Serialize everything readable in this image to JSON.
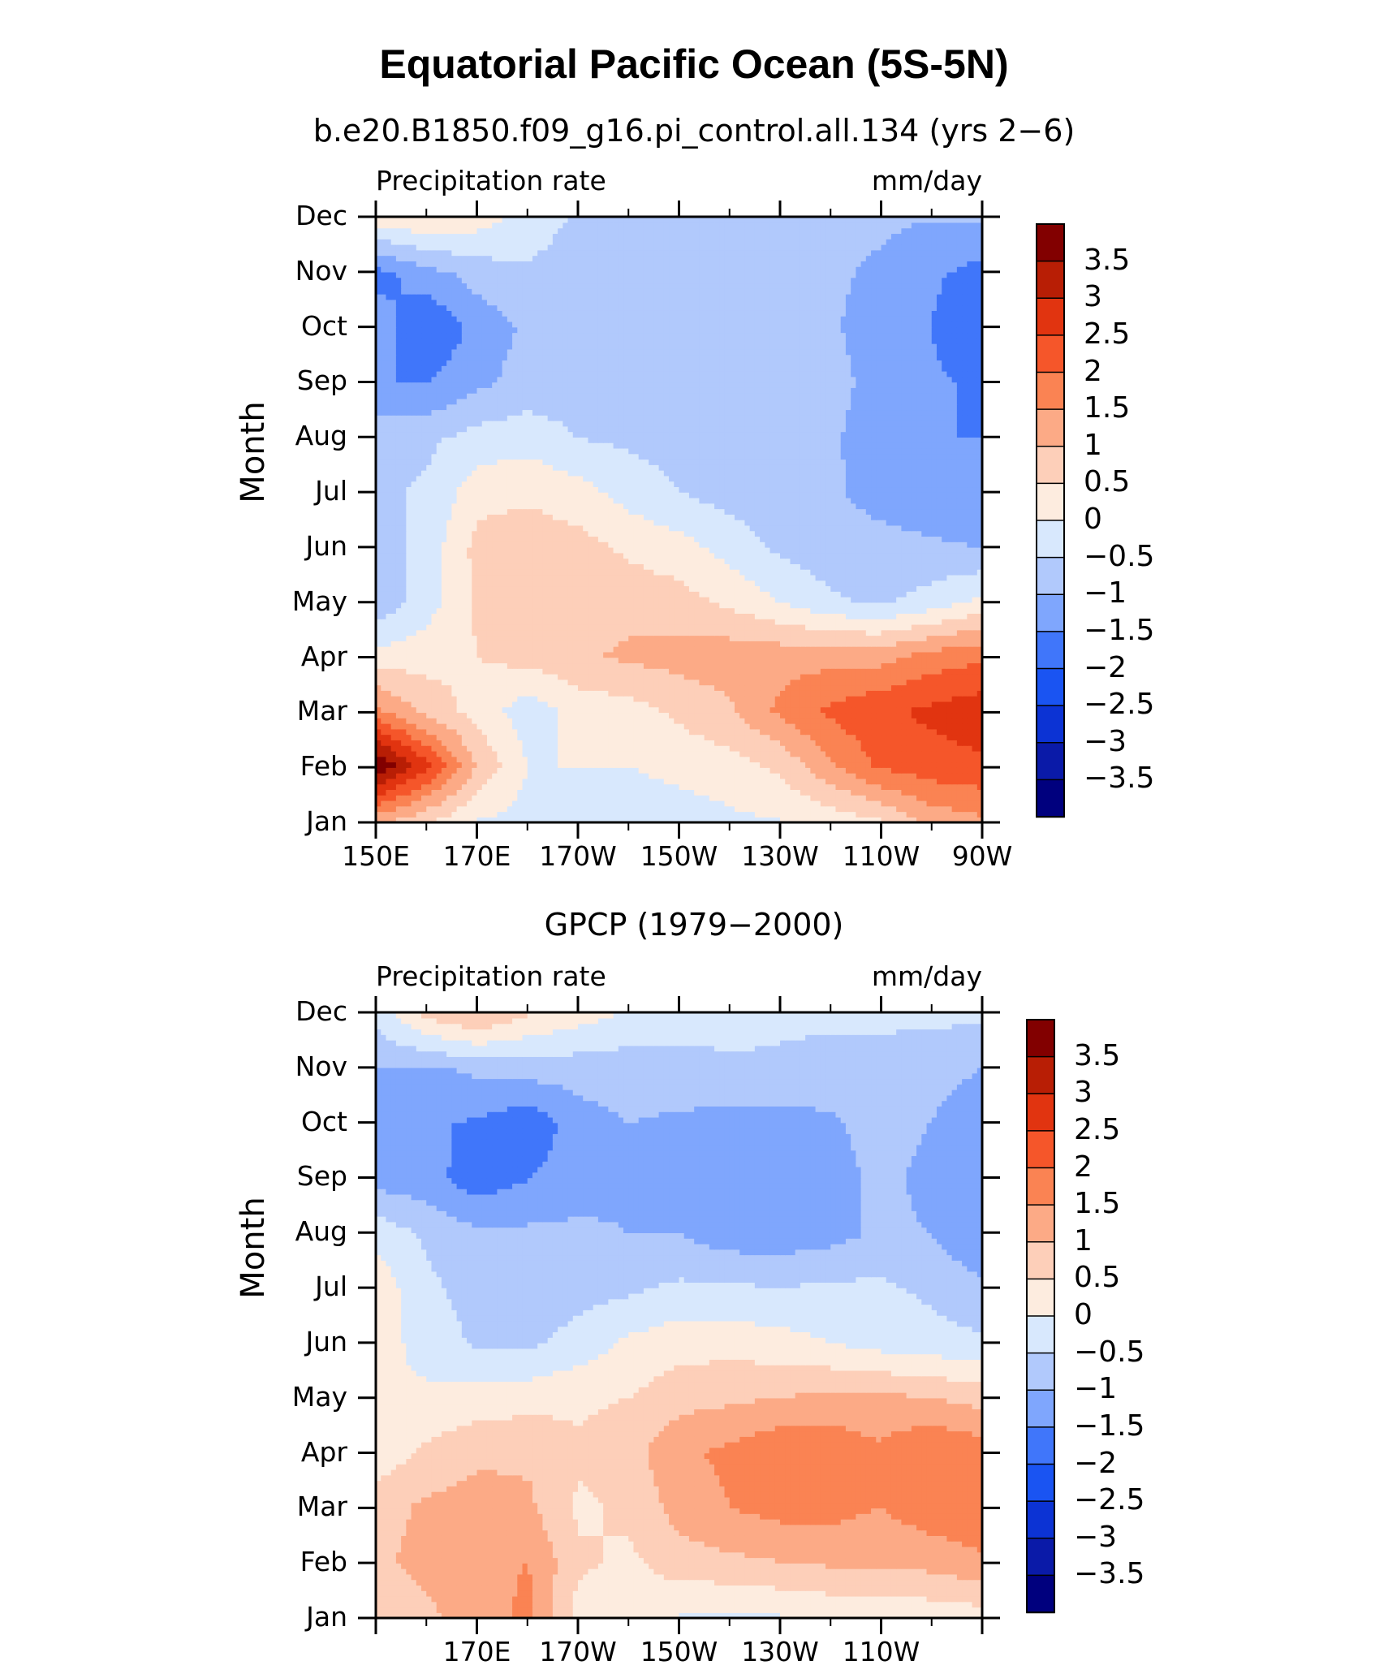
{
  "title": "Equatorial Pacific Ocean (5S-5N)",
  "palette": {
    "-4": "#00007e",
    "-3.5": "#0a1aa8",
    "-3": "#0c33d4",
    "-2.5": "#1a54f2",
    "-2": "#4076fa",
    "-1.5": "#7fa6fd",
    "-1": "#b1c9fc",
    "-0.5": "#d8e8fd",
    "0": "#fdecdf",
    "0.5": "#fdcfb9",
    "1": "#fcaa86",
    "1.5": "#fa8353",
    "2": "#f5562a",
    "2.5": "#e13410",
    "3": "#b81e05",
    "3.5": "#820000"
  },
  "chart_data": [
    {
      "type": "heatmap",
      "subtitle": "b.e20.B1850.f09_g16.pi_control.all.134 (yrs 2−6)",
      "left_label": "Precipitation rate",
      "right_label": "mm/day",
      "ylabel": "Month",
      "y_ticks": [
        "Jan",
        "Feb",
        "Mar",
        "Apr",
        "May",
        "Jun",
        "Jul",
        "Aug",
        "Sep",
        "Oct",
        "Nov",
        "Dec"
      ],
      "x_ticks": [
        "150E",
        "170E",
        "170W",
        "150W",
        "130W",
        "110W",
        "90W"
      ],
      "x_range_deg_east": [
        150,
        270
      ],
      "colorbar_levels": [
        "3.5",
        "3",
        "2.5",
        "2",
        "1.5",
        "1",
        "0.5",
        "0",
        "−0.5",
        "−1",
        "−1.5",
        "−2",
        "−2.5",
        "−3",
        "−3.5"
      ],
      "x": [
        150,
        160,
        170,
        180,
        190,
        200,
        210,
        220,
        230,
        240,
        250,
        260,
        270
      ],
      "rows": [
        [
          1.2,
          0.6,
          0.0,
          -0.2,
          -0.4,
          -0.4,
          -0.3,
          -0.1,
          0.0,
          0.2,
          0.5,
          1.2,
          1.4
        ],
        [
          4.0,
          2.6,
          0.9,
          0.0,
          0.0,
          0.0,
          0.2,
          0.3,
          0.6,
          1.4,
          2.1,
          2.3,
          2.4
        ],
        [
          1.6,
          0.8,
          0.3,
          -0.3,
          0.2,
          0.3,
          0.6,
          0.9,
          1.6,
          2.1,
          2.4,
          2.6,
          2.8
        ],
        [
          0.2,
          0.3,
          0.5,
          0.7,
          0.9,
          1.1,
          1.2,
          1.3,
          1.3,
          1.3,
          1.3,
          1.7,
          1.9
        ],
        [
          -0.9,
          -0.2,
          0.6,
          0.8,
          0.8,
          0.8,
          0.7,
          0.4,
          0.0,
          -0.4,
          -0.6,
          -0.3,
          0.1
        ],
        [
          -0.8,
          -0.3,
          0.7,
          0.8,
          0.7,
          0.4,
          0.2,
          -0.2,
          -0.6,
          -0.8,
          -0.8,
          -0.9,
          -1.0
        ],
        [
          -0.6,
          -0.4,
          0.3,
          0.4,
          0.2,
          -0.2,
          -0.5,
          -0.7,
          -0.8,
          -0.9,
          -1.2,
          -1.4,
          -1.5
        ],
        [
          -0.7,
          -0.6,
          -0.3,
          -0.2,
          -0.5,
          -0.6,
          -0.7,
          -0.8,
          -0.8,
          -0.9,
          -1.3,
          -1.5,
          -1.5
        ],
        [
          -1.5,
          -1.5,
          -1.1,
          -0.8,
          -0.8,
          -0.8,
          -0.8,
          -0.8,
          -0.8,
          -0.8,
          -1.2,
          -1.4,
          -1.6
        ],
        [
          -1.2,
          -2.0,
          -1.3,
          -0.9,
          -0.8,
          -0.8,
          -0.8,
          -0.8,
          -0.8,
          -0.9,
          -1.3,
          -1.5,
          -1.9
        ],
        [
          -1.7,
          -1.2,
          -0.8,
          -0.6,
          -0.8,
          -0.8,
          -0.8,
          -0.8,
          -0.8,
          -0.9,
          -1.1,
          -1.4,
          -1.7
        ],
        [
          0.2,
          0.4,
          0.2,
          -0.2,
          -0.6,
          -0.7,
          -0.7,
          -0.7,
          -0.8,
          -0.8,
          -0.9,
          -1.0,
          -1.0
        ]
      ]
    },
    {
      "type": "heatmap",
      "subtitle": "GPCP (1979−2000)",
      "left_label": "Precipitation rate",
      "right_label": "mm/day",
      "ylabel": "Month",
      "y_ticks": [
        "Jan",
        "Feb",
        "Mar",
        "Apr",
        "May",
        "Jun",
        "Jul",
        "Aug",
        "Sep",
        "Oct",
        "Nov",
        "Dec"
      ],
      "x_ticks": [
        "170E",
        "170W",
        "150W",
        "130W",
        "110W"
      ],
      "x_range_deg_east": [
        150,
        270
      ],
      "colorbar_levels": [
        "3.5",
        "3",
        "2.5",
        "2",
        "1.5",
        "1",
        "0.5",
        "0",
        "−0.5",
        "−1",
        "−1.5",
        "−2",
        "−2.5",
        "−3",
        "−3.5"
      ],
      "x": [
        150,
        160,
        170,
        180,
        190,
        200,
        210,
        220,
        230,
        240,
        250,
        260,
        270
      ],
      "rows": [
        [
          0.6,
          0.9,
          1.3,
          1.6,
          0.3,
          0.1,
          0.0,
          -0.1,
          0.0,
          0.1,
          0.1,
          0.2,
          0.3
        ],
        [
          0.9,
          1.2,
          1.4,
          1.5,
          0.6,
          0.4,
          0.8,
          0.9,
          1.0,
          1.1,
          1.1,
          1.2,
          1.4
        ],
        [
          0.8,
          1.1,
          1.2,
          1.1,
          0.4,
          0.6,
          1.2,
          1.5,
          1.7,
          1.7,
          1.5,
          1.8,
          1.9
        ],
        [
          0.2,
          0.6,
          0.9,
          0.9,
          0.6,
          0.8,
          1.4,
          1.6,
          1.9,
          1.9,
          1.6,
          2.0,
          1.8
        ],
        [
          0.0,
          0.1,
          0.2,
          0.3,
          0.4,
          0.5,
          0.8,
          0.9,
          1.0,
          1.1,
          1.1,
          1.0,
          0.8
        ],
        [
          0.2,
          -0.2,
          -0.6,
          -0.6,
          -0.3,
          0.1,
          0.3,
          0.3,
          0.2,
          0.0,
          -0.2,
          -0.3,
          -0.4
        ],
        [
          0.3,
          -0.4,
          -0.7,
          -0.8,
          -0.7,
          -0.6,
          -0.4,
          -0.4,
          -0.5,
          -0.4,
          -0.4,
          -0.6,
          -0.9
        ],
        [
          -0.2,
          -0.6,
          -0.9,
          -0.9,
          -0.9,
          -1.0,
          -1.0,
          -1.3,
          -1.3,
          -1.2,
          -0.9,
          -1.0,
          -1.4
        ],
        [
          -1.2,
          -1.3,
          -1.8,
          -1.5,
          -1.2,
          -1.1,
          -1.1,
          -1.2,
          -1.3,
          -1.2,
          -0.9,
          -1.1,
          -1.5
        ],
        [
          -1.1,
          -1.4,
          -1.6,
          -1.9,
          -1.2,
          -1.0,
          -1.1,
          -1.2,
          -1.2,
          -1.1,
          -0.8,
          -1.0,
          -1.4
        ],
        [
          -1.0,
          -1.1,
          -0.9,
          -0.8,
          -0.8,
          -0.8,
          -0.7,
          -0.6,
          -0.6,
          -0.7,
          -0.7,
          -0.8,
          -1.0
        ],
        [
          -0.3,
          0.6,
          1.0,
          0.5,
          0.2,
          -0.1,
          -0.3,
          -0.3,
          -0.4,
          -0.4,
          -0.4,
          -0.4,
          -0.4
        ]
      ]
    }
  ]
}
